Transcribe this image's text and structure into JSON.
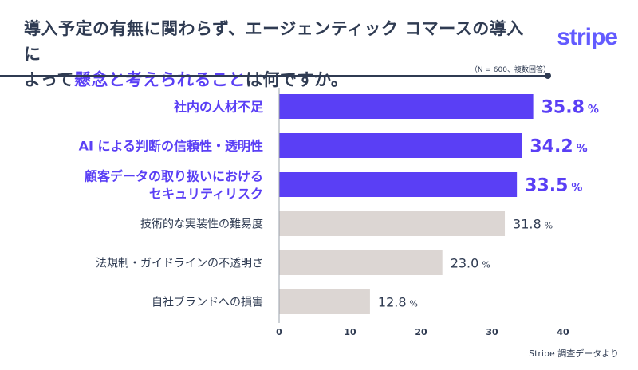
{
  "title": {
    "line1": "導入予定の有無に関わらず、エージェンティック コマースの導入に",
    "line2_pre": "よって",
    "line2_hl": "懸念と考えられること",
    "line2_post": "は何ですか。"
  },
  "logo": "stripe",
  "note": "（N = 600、複数回答）",
  "source": "Stripe 調査データより",
  "colors": {
    "highlight": "#5a3ff5",
    "muted": "#dcd6d3",
    "text": "#2f3b52"
  },
  "chart_data": {
    "type": "bar",
    "orientation": "horizontal",
    "categories": [
      [
        "社内の人材不足"
      ],
      [
        "AI による判断の信頼性・透明性"
      ],
      [
        "顧客データの取り扱いにおける",
        "セキュリティリスク"
      ],
      [
        "技術的な実装性の難易度"
      ],
      [
        "法規制・ガイドラインの不透明さ"
      ],
      [
        "自社ブランドへの損害"
      ]
    ],
    "values": [
      35.8,
      34.2,
      33.5,
      31.8,
      23.0,
      12.8
    ],
    "value_labels": [
      "35.8",
      "34.2",
      "33.5",
      "31.8",
      "23.0",
      "12.8"
    ],
    "unit": "%",
    "highlighted": [
      true,
      true,
      true,
      false,
      false,
      false
    ],
    "xlim": [
      0,
      40
    ],
    "xticks": [
      "0",
      "10",
      "20",
      "30",
      "40"
    ]
  }
}
